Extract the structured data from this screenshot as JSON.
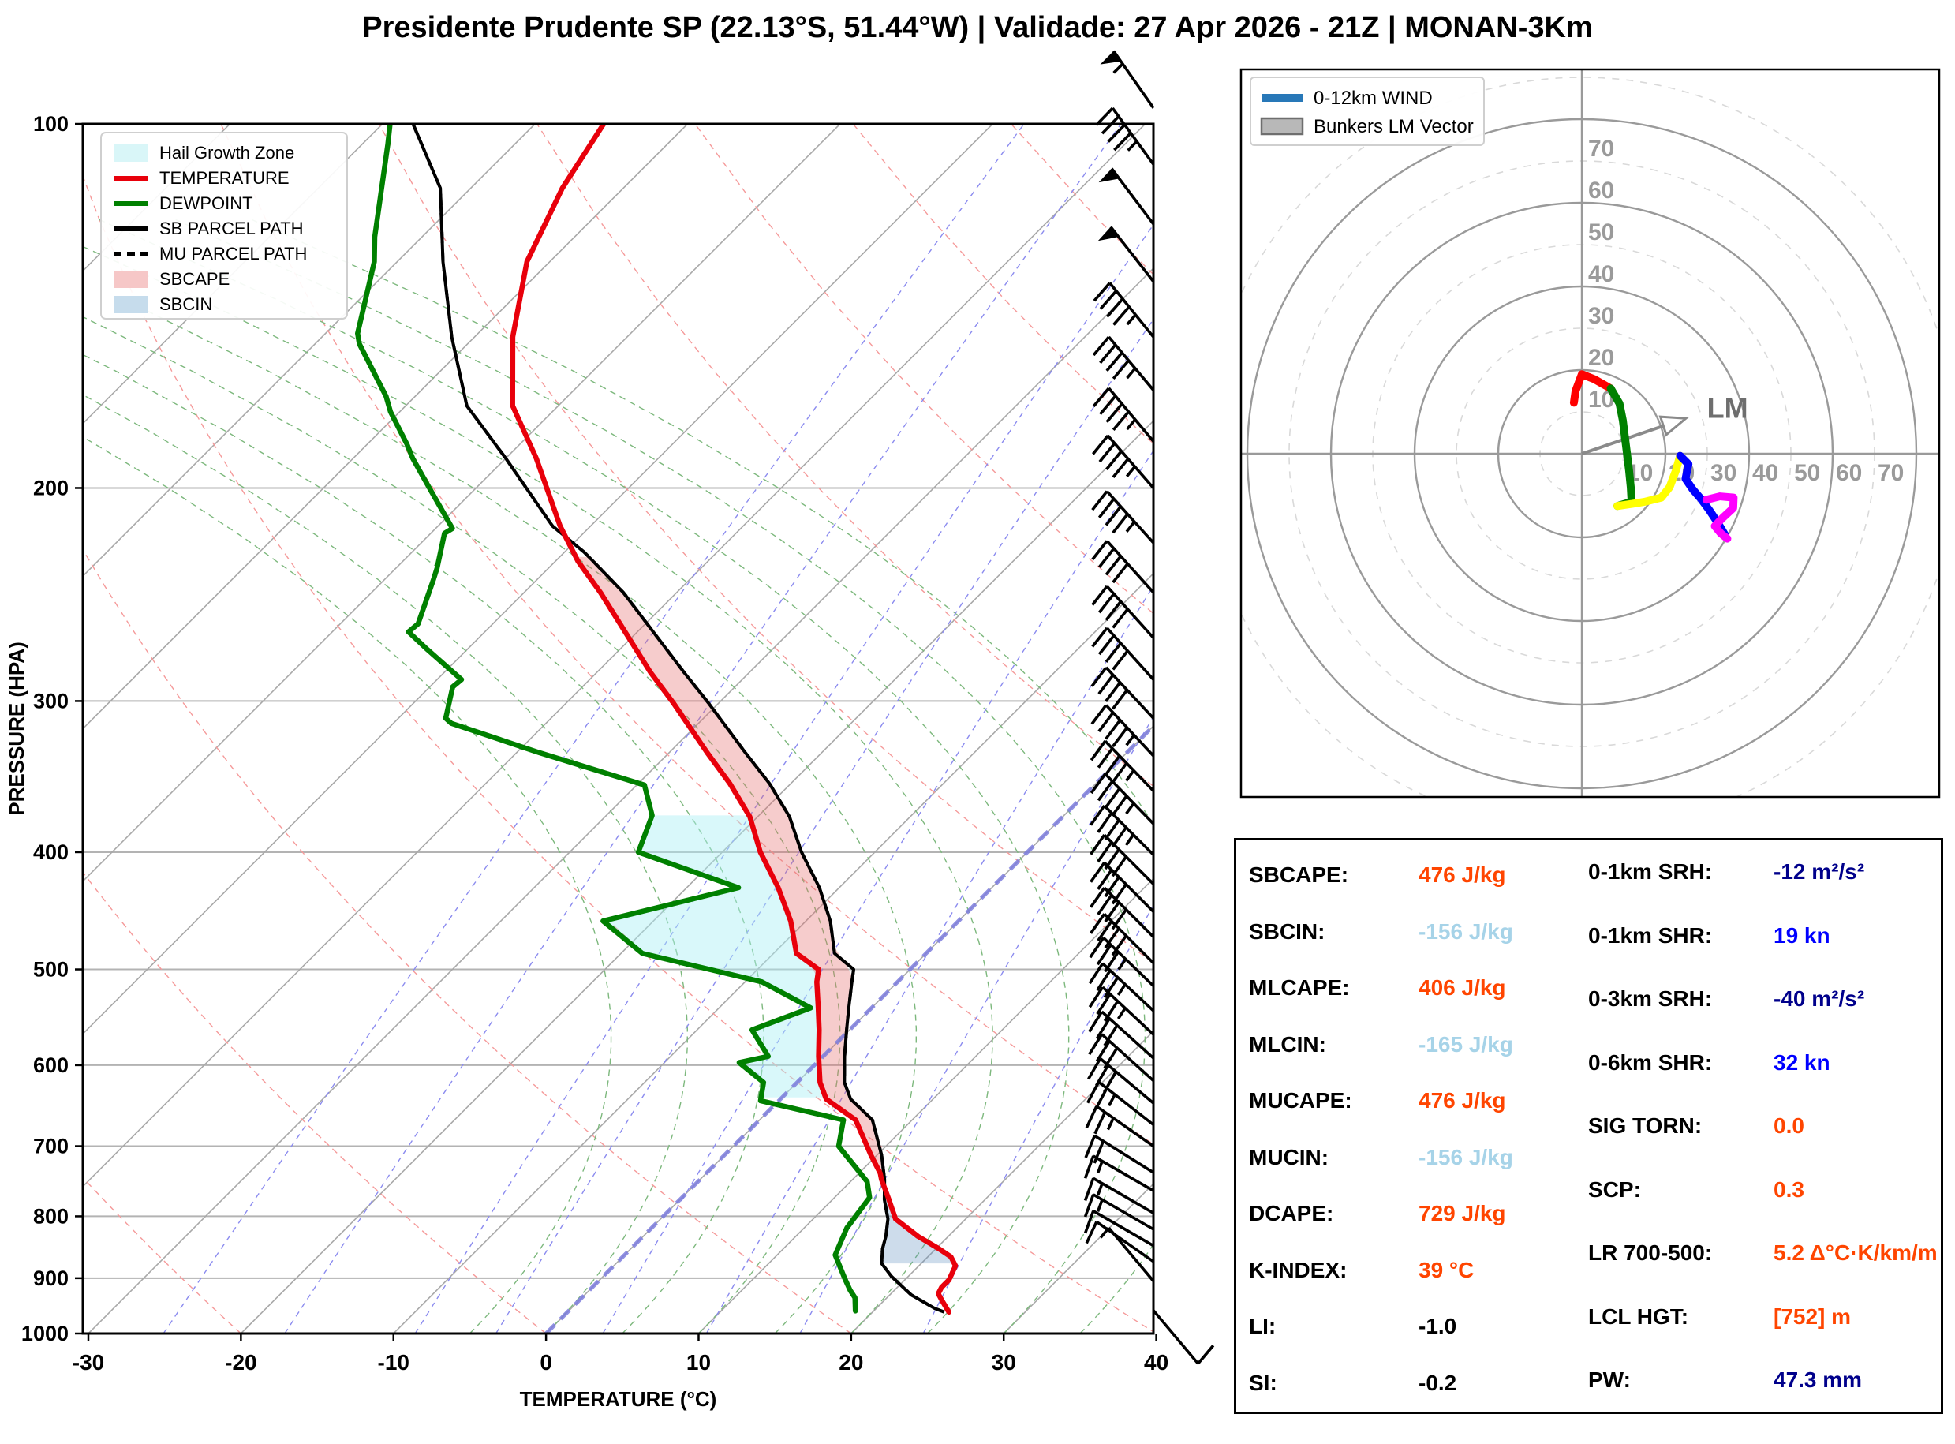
{
  "title": "Presidente Prudente SP (22.13°S, 51.44°W) | Validade: 27 Apr 2026 - 21Z | MONAN-3Km",
  "chart_data": {
    "skewt": {
      "type": "line",
      "xlabel": "TEMPERATURE (°C)",
      "ylabel": "PRESSURE (HPA)",
      "x_ticks": [
        -30,
        -20,
        -10,
        0,
        10,
        20,
        30,
        40
      ],
      "p_ticks": [
        100,
        200,
        300,
        400,
        500,
        600,
        700,
        800,
        900,
        1000
      ],
      "xlim": [
        -30,
        40
      ],
      "plim": [
        100,
        1000
      ],
      "grid": "on",
      "legend_position": "upper-left",
      "legend": [
        {
          "label": "Hail Growth Zone",
          "swatch": "patch",
          "color": "#d9f6f8"
        },
        {
          "label": "TEMPERATURE",
          "swatch": "line",
          "color": "#e8000b"
        },
        {
          "label": "DEWPOINT",
          "swatch": "line",
          "color": "#008000"
        },
        {
          "label": "SB PARCEL PATH",
          "swatch": "line",
          "color": "#000000"
        },
        {
          "label": "MU PARCEL PATH",
          "swatch": "dashed-line",
          "color": "#000000"
        },
        {
          "label": "SBCAPE",
          "swatch": "patch",
          "color": "#f6c7c7"
        },
        {
          "label": "SBCIN",
          "swatch": "patch",
          "color": "#c6dcec"
        }
      ],
      "temperature_profile": [
        [
          100,
          -75.5
        ],
        [
          113,
          -74.0
        ],
        [
          130,
          -71.5
        ],
        [
          150,
          -67.5
        ],
        [
          171,
          -63.0
        ],
        [
          189,
          -58.0
        ],
        [
          215,
          -52.0
        ],
        [
          230,
          -48.5
        ],
        [
          244,
          -45.0
        ],
        [
          284,
          -36.5
        ],
        [
          301,
          -33.0
        ],
        [
          331,
          -27.5
        ],
        [
          351,
          -24.0
        ],
        [
          374,
          -20.5
        ],
        [
          400,
          -17.5
        ],
        [
          428,
          -14.0
        ],
        [
          456,
          -11.0
        ],
        [
          485,
          -8.5
        ],
        [
          500,
          -6.0
        ],
        [
          512,
          -5.3
        ],
        [
          538,
          -3.5
        ],
        [
          561,
          -2.0
        ],
        [
          590,
          -0.3
        ],
        [
          620,
          1.5
        ],
        [
          640,
          3.0
        ],
        [
          666,
          6.3
        ],
        [
          712,
          9.6
        ],
        [
          737,
          11.4
        ],
        [
          746,
          11.9
        ],
        [
          775,
          13.7
        ],
        [
          804,
          15.4
        ],
        [
          831,
          18.0
        ],
        [
          851,
          20.2
        ],
        [
          864,
          21.5
        ],
        [
          879,
          22.4
        ],
        [
          903,
          22.9
        ],
        [
          916,
          22.9
        ],
        [
          927,
          23.1
        ],
        [
          941,
          23.9
        ],
        [
          960,
          25.0
        ]
      ],
      "dewpoint_profile": [
        [
          100,
          -89.5
        ],
        [
          104,
          -88.3
        ],
        [
          124,
          -83.1
        ],
        [
          130,
          -81.5
        ],
        [
          149,
          -77.9
        ],
        [
          152,
          -77.1
        ],
        [
          168,
          -71.9
        ],
        [
          173,
          -70.6
        ],
        [
          184,
          -67.4
        ],
        [
          189,
          -66.1
        ],
        [
          198,
          -63.6
        ],
        [
          216,
          -58.9
        ],
        [
          218,
          -59.1
        ],
        [
          233,
          -57.3
        ],
        [
          238,
          -56.8
        ],
        [
          259,
          -54.9
        ],
        [
          263,
          -55.0
        ],
        [
          272,
          -52.6
        ],
        [
          288,
          -48.4
        ],
        [
          292,
          -48.5
        ],
        [
          310,
          -46.9
        ],
        [
          313,
          -46.2
        ],
        [
          331,
          -38.5
        ],
        [
          352,
          -29.5
        ],
        [
          373,
          -27.0
        ],
        [
          400,
          -25.5
        ],
        [
          428,
          -16.6
        ],
        [
          456,
          -23.3
        ],
        [
          485,
          -18.6
        ],
        [
          512,
          -8.9
        ],
        [
          538,
          -4.0
        ],
        [
          561,
          -6.4
        ],
        [
          590,
          -3.6
        ],
        [
          597,
          -5.1
        ],
        [
          620,
          -2.2
        ],
        [
          642,
          -1.2
        ],
        [
          666,
          5.5
        ],
        [
          700,
          6.9
        ],
        [
          749,
          11.1
        ],
        [
          772,
          12.3
        ],
        [
          818,
          12.8
        ],
        [
          861,
          13.8
        ],
        [
          901,
          16.0
        ],
        [
          921,
          17.1
        ],
        [
          934,
          17.9
        ],
        [
          958,
          18.8
        ]
      ],
      "sb_parcel_path": [
        [
          100,
          -88.0
        ],
        [
          113,
          -82.0
        ],
        [
          130,
          -77.0
        ],
        [
          150,
          -71.5
        ],
        [
          171,
          -66.0
        ],
        [
          189,
          -60.0
        ],
        [
          215,
          -52.5
        ],
        [
          226,
          -48.7
        ],
        [
          230,
          -47.5
        ],
        [
          244,
          -43.5
        ],
        [
          284,
          -34.3
        ],
        [
          301,
          -30.7
        ],
        [
          331,
          -25.0
        ],
        [
          351,
          -21.4
        ],
        [
          374,
          -17.9
        ],
        [
          400,
          -14.8
        ],
        [
          428,
          -11.3
        ],
        [
          456,
          -8.4
        ],
        [
          485,
          -6.0
        ],
        [
          500,
          -3.7
        ],
        [
          512,
          -3.0
        ],
        [
          538,
          -1.5
        ],
        [
          561,
          -0.2
        ],
        [
          590,
          1.4
        ],
        [
          620,
          3.1
        ],
        [
          640,
          4.6
        ],
        [
          666,
          7.4
        ],
        [
          712,
          10.3
        ],
        [
          746,
          12.1
        ],
        [
          775,
          13.4
        ],
        [
          804,
          14.9
        ],
        [
          831,
          15.9
        ],
        [
          851,
          16.5
        ],
        [
          875,
          17.4
        ],
        [
          897,
          18.9
        ],
        [
          929,
          21.4
        ],
        [
          953,
          23.8
        ],
        [
          960,
          24.7
        ]
      ],
      "mu_parcel_path": [
        [
          100,
          -88.0
        ],
        [
          113,
          -82.0
        ],
        [
          130,
          -77.0
        ],
        [
          150,
          -71.5
        ],
        [
          171,
          -66.0
        ],
        [
          189,
          -60.0
        ],
        [
          215,
          -52.5
        ],
        [
          226,
          -48.7
        ],
        [
          230,
          -47.5
        ],
        [
          244,
          -43.5
        ],
        [
          284,
          -34.3
        ],
        [
          301,
          -30.7
        ],
        [
          331,
          -25.0
        ],
        [
          351,
          -21.4
        ],
        [
          374,
          -17.9
        ],
        [
          400,
          -14.8
        ],
        [
          428,
          -11.3
        ],
        [
          456,
          -8.4
        ],
        [
          485,
          -6.0
        ],
        [
          500,
          -3.7
        ],
        [
          512,
          -3.0
        ],
        [
          538,
          -1.5
        ],
        [
          561,
          -0.2
        ],
        [
          590,
          1.4
        ],
        [
          620,
          3.1
        ],
        [
          640,
          4.6
        ],
        [
          666,
          7.4
        ],
        [
          712,
          10.3
        ],
        [
          746,
          12.1
        ],
        [
          775,
          13.4
        ],
        [
          804,
          14.9
        ],
        [
          831,
          15.9
        ],
        [
          851,
          16.5
        ],
        [
          875,
          17.4
        ],
        [
          897,
          18.9
        ],
        [
          929,
          21.4
        ],
        [
          953,
          23.8
        ],
        [
          960,
          24.7
        ]
      ],
      "sbcape_layer_hpa": [
        228,
        746
      ],
      "sbcin_layer_hpa": [
        746,
        875
      ],
      "hail_growth_zone_layer_hpa": [
        373,
        638
      ],
      "highlight_isotherm_c": 0,
      "wind_barbs": [
        [
          957,
          10,
          140
        ],
        [
          905,
          5,
          320
        ],
        [
          872,
          10,
          305
        ],
        [
          846,
          13,
          300
        ],
        [
          820,
          15,
          300
        ],
        [
          795,
          15,
          300
        ],
        [
          762,
          18,
          300
        ],
        [
          736,
          20,
          302
        ],
        [
          700,
          25,
          305
        ],
        [
          672,
          28,
          308
        ],
        [
          645,
          30,
          310
        ],
        [
          618,
          30,
          312
        ],
        [
          592,
          30,
          312
        ],
        [
          566,
          35,
          313
        ],
        [
          541,
          35,
          313
        ],
        [
          516,
          38,
          314
        ],
        [
          494,
          40,
          315
        ],
        [
          470,
          40,
          315
        ],
        [
          448,
          40,
          315
        ],
        [
          425,
          42,
          315
        ],
        [
          402,
          45,
          315
        ],
        [
          379,
          45,
          316
        ],
        [
          356,
          45,
          316
        ],
        [
          333,
          45,
          317
        ],
        [
          310,
          42,
          317
        ],
        [
          288,
          40,
          318
        ],
        [
          266,
          40,
          318
        ],
        [
          244,
          42,
          318
        ],
        [
          222,
          45,
          318
        ],
        [
          200,
          45,
          319
        ],
        [
          183,
          45,
          320
        ],
        [
          166,
          47,
          320
        ],
        [
          150,
          48,
          321
        ],
        [
          135,
          50,
          322
        ],
        [
          121,
          50,
          323
        ],
        [
          108,
          47,
          324
        ],
        [
          97,
          55,
          325
        ]
      ]
    },
    "hodograph": {
      "type": "line",
      "legend": [
        {
          "label": "0-12km WIND",
          "swatch": "line",
          "color": "#2878b8"
        },
        {
          "label": "Bunkers LM Vector",
          "swatch": "patch",
          "color": "#b8b8b8"
        }
      ],
      "ring_interval_kn": 10,
      "ring_labels": [
        10,
        20,
        30,
        40,
        50,
        60,
        70
      ],
      "lm_label": "LM",
      "lm_vector_uv": [
        22,
        7.5
      ],
      "trace_segments": [
        {
          "name": "0-1km",
          "color": "#ff0000",
          "points": [
            [
              -1.9,
              12.2
            ],
            [
              -1.5,
              15.0
            ],
            [
              0.0,
              19.0
            ],
            [
              3.0,
              17.8
            ],
            [
              6.9,
              15.6
            ]
          ]
        },
        {
          "name": "1-3km",
          "color": "#008000",
          "points": [
            [
              6.9,
              15.6
            ],
            [
              9.0,
              12.0
            ],
            [
              9.8,
              8.0
            ],
            [
              10.3,
              4.0
            ],
            [
              10.8,
              0.0
            ],
            [
              11.3,
              -4.0
            ],
            [
              11.7,
              -8.0
            ],
            [
              11.9,
              -11.5
            ],
            [
              8.5,
              -12.5
            ]
          ]
        },
        {
          "name": "3-6km",
          "color": "#ffff00",
          "points": [
            [
              8.5,
              -12.5
            ],
            [
              12.0,
              -12.0
            ],
            [
              15.0,
              -11.5
            ],
            [
              19.0,
              -10.5
            ],
            [
              21.0,
              -8.0
            ],
            [
              22.5,
              -4.0
            ],
            [
              23.5,
              -0.5
            ]
          ]
        },
        {
          "name": "6-9km",
          "color": "#0000ff",
          "points": [
            [
              23.5,
              -0.5
            ],
            [
              25.5,
              -2.5
            ],
            [
              24.8,
              -6.0
            ],
            [
              26.5,
              -8.5
            ],
            [
              28.5,
              -10.8
            ],
            [
              30.5,
              -13.5
            ],
            [
              32.5,
              -16.5
            ],
            [
              34.3,
              -19.5
            ]
          ]
        },
        {
          "name": "9-12km",
          "color": "#ff00ff",
          "points": [
            [
              29.8,
              -11.0
            ],
            [
              33.0,
              -10.2
            ],
            [
              36.3,
              -10.5
            ],
            [
              36.2,
              -13.0
            ],
            [
              33.5,
              -15.5
            ],
            [
              31.8,
              -17.3
            ],
            [
              33.2,
              -19.0
            ],
            [
              34.8,
              -20.3
            ]
          ]
        }
      ]
    }
  },
  "stats_panel": {
    "left_column": [
      {
        "label": "SBCAPE:",
        "value": "476 J/kg",
        "color": "#ff4500"
      },
      {
        "label": "SBCIN:",
        "value": "-156 J/kg",
        "color": "#a6d3e8"
      },
      {
        "label": "MLCAPE:",
        "value": "406 J/kg",
        "color": "#ff4500"
      },
      {
        "label": "MLCIN:",
        "value": "-165 J/kg",
        "color": "#a6d3e8"
      },
      {
        "label": "MUCAPE:",
        "value": "476 J/kg",
        "color": "#ff4500"
      },
      {
        "label": "MUCIN:",
        "value": "-156 J/kg",
        "color": "#a6d3e8"
      },
      {
        "label": "DCAPE:",
        "value": "729 J/kg",
        "color": "#ff4500"
      },
      {
        "label": "K-INDEX:",
        "value": "39 °C",
        "color": "#ff4500"
      },
      {
        "label": "LI:",
        "value": "-1.0",
        "color": "#000000"
      },
      {
        "label": "SI:",
        "value": "-0.2",
        "color": "#000000"
      }
    ],
    "right_column": [
      {
        "label": "0-1km SRH:",
        "value": "-12 m²/s²",
        "color": "#00008b"
      },
      {
        "label": "0-1km SHR:",
        "value": "19 kn",
        "color": "#0000ff"
      },
      {
        "label": "0-3km SRH:",
        "value": "-40 m²/s²",
        "color": "#00008b"
      },
      {
        "label": "0-6km SHR:",
        "value": "32 kn",
        "color": "#0000ff"
      },
      {
        "label": "SIG TORN:",
        "value": "0.0",
        "color": "#ff4500"
      },
      {
        "label": "SCP:",
        "value": "0.3",
        "color": "#ff4500"
      },
      {
        "label": "LR 700-500:",
        "value": "5.2 Δ°C·K/km/m",
        "color": "#ff4500"
      },
      {
        "label": "LCL HGT:",
        "value": "[752] m",
        "color": "#ff4500"
      },
      {
        "label": "PW:",
        "value": "47.3 mm",
        "color": "#00008b"
      }
    ]
  }
}
